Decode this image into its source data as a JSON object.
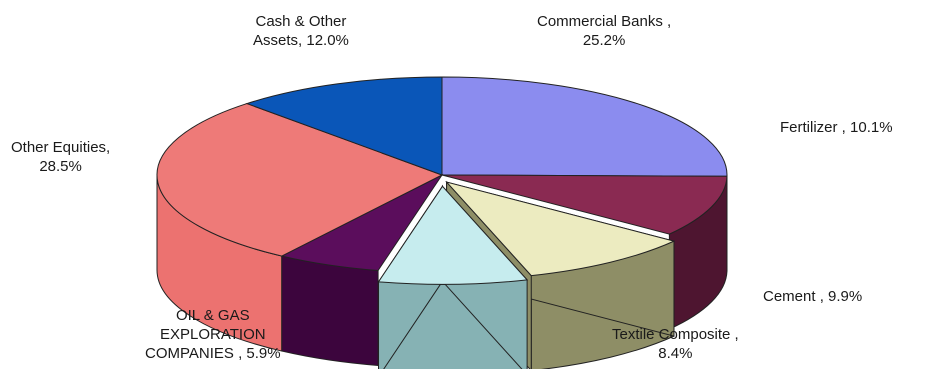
{
  "chart_data": {
    "type": "pie",
    "variant": "3d",
    "title": "",
    "legend": "none",
    "slices": [
      {
        "label": "Commercial Banks",
        "value": 25.2,
        "display": "Commercial Banks ,\n25.2%",
        "color": "#8b8cef",
        "side": "#5d5eb0"
      },
      {
        "label": "Fertilizer",
        "value": 10.1,
        "display": "Fertilizer , 10.1%",
        "color": "#8a2a52",
        "side": "#4e1530"
      },
      {
        "label": "Cement",
        "value": 9.9,
        "display": "Cement , 9.9%",
        "color": "#ecebc0",
        "side": "#8e8e66"
      },
      {
        "label": "Textile Composite",
        "value": 8.4,
        "display": "Textile Composite ,\n8.4%",
        "color": "#c6ecee",
        "side": "#86b2b4"
      },
      {
        "label": "OIL & GAS EXPLORATION COMPANIES",
        "value": 5.9,
        "display": "OIL & GAS\nEXPLORATION\nCOMPANIES , 5.9%",
        "color": "#5b0d5c",
        "side": "#3c053d"
      },
      {
        "label": "Other Equities",
        "value": 28.5,
        "display": "Other Equities,\n28.5%",
        "color": "#ee7a78",
        "side": "#ec7270"
      },
      {
        "label": "Cash & Other Assets",
        "value": 12.0,
        "display": "Cash & Other\nAssets, 12.0%",
        "color": "#0a56b8",
        "side": "#063a80"
      }
    ]
  }
}
